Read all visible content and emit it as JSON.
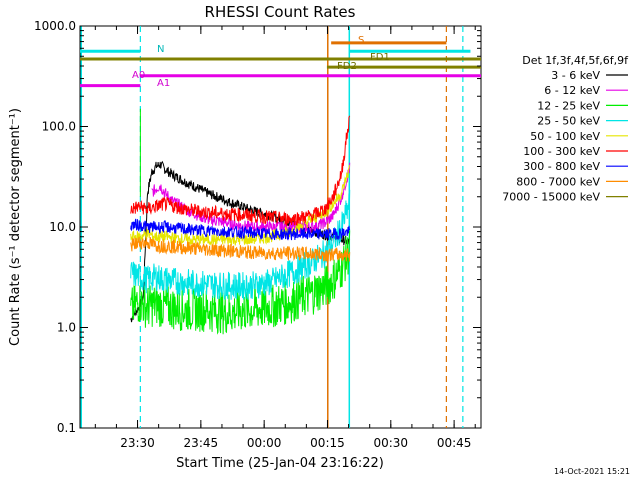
{
  "chart_data": {
    "type": "line",
    "title": "RHESSI Count Rates",
    "xlabel": "Start Time (25-Jan-04 23:16:22)",
    "ylabel": "Count Rate (s⁻¹ detector segment⁻¹)",
    "y_scale": "log",
    "ylim": [
      0.1,
      1000
    ],
    "x_unit": "minutes from 23:16:22",
    "xlim": [
      0,
      95
    ],
    "x_tick_labels": [
      "23:30",
      "23:45",
      "00:00",
      "00:15",
      "00:30",
      "00:45"
    ],
    "y_tick_labels": [
      "0.1",
      "1.0",
      "10.0",
      "100.0",
      "1000.0"
    ],
    "legend_title": "Det 1f,3f,4f,5f,6f,9f",
    "legend_position": "right",
    "series": [
      {
        "name": "3 - 6 keV",
        "color": "#000000",
        "x": [
          12,
          13,
          14,
          15,
          16,
          17,
          18,
          19,
          20,
          22,
          25,
          30,
          35,
          40,
          45,
          50,
          55,
          60,
          62,
          64
        ],
        "y": [
          1.2,
          1.4,
          1.6,
          2,
          22,
          35,
          40,
          42,
          38,
          33,
          28,
          22,
          18,
          15,
          13,
          11,
          9,
          8,
          7.5,
          7
        ]
      },
      {
        "name": "6 - 12 keV",
        "color": "#e600e6",
        "x": [
          17,
          18,
          19,
          20,
          22,
          25,
          30,
          35,
          40,
          45,
          50,
          55,
          58,
          60,
          62,
          64
        ],
        "y": [
          22,
          24,
          26,
          22,
          18,
          15,
          12,
          11,
          10,
          10,
          10,
          10,
          11,
          13,
          20,
          40
        ]
      },
      {
        "name": "12 - 25 keV",
        "color": "#00ee00",
        "x": [
          12,
          14,
          16,
          18,
          20,
          25,
          30,
          35,
          40,
          45,
          50,
          55,
          58,
          60,
          62,
          64
        ],
        "y": [
          1.5,
          1.8,
          1.6,
          1.7,
          1.6,
          1.5,
          1.5,
          1.4,
          1.5,
          1.6,
          1.8,
          2.2,
          2.5,
          3,
          4,
          6
        ]
      },
      {
        "name": "25 - 50 keV",
        "color": "#00e5e5",
        "x": [
          12,
          14,
          16,
          18,
          20,
          25,
          30,
          35,
          40,
          45,
          50,
          55,
          58,
          60,
          62,
          64
        ],
        "y": [
          3.5,
          3.2,
          3.0,
          3.2,
          3.0,
          2.8,
          2.7,
          2.6,
          2.6,
          2.8,
          3.5,
          4.5,
          5.5,
          7,
          10,
          18
        ]
      },
      {
        "name": "50 - 100 keV",
        "color": "#e5e500",
        "x": [
          12,
          14,
          16,
          18,
          20,
          25,
          30,
          35,
          40,
          45,
          50,
          55,
          58,
          60,
          62,
          64
        ],
        "y": [
          8,
          8,
          8.5,
          8,
          8,
          7.5,
          7.5,
          7.5,
          7.5,
          8,
          9,
          12,
          14,
          17,
          22,
          40
        ]
      },
      {
        "name": "100 - 300 keV",
        "color": "#ff0000",
        "x": [
          12,
          14,
          16,
          18,
          20,
          25,
          30,
          35,
          40,
          45,
          50,
          55,
          58,
          60,
          62,
          63,
          64
        ],
        "y": [
          15,
          16,
          15,
          16,
          17,
          15,
          14,
          13.5,
          13,
          12.5,
          12,
          13,
          15,
          20,
          35,
          70,
          130
        ]
      },
      {
        "name": "300 - 800 keV",
        "color": "#0000ff",
        "x": [
          12,
          14,
          16,
          18,
          20,
          25,
          30,
          35,
          40,
          45,
          50,
          55,
          60,
          64
        ],
        "y": [
          10.5,
          10.5,
          10,
          10,
          10,
          9.5,
          9.2,
          9.0,
          8.8,
          8.5,
          8.5,
          8.5,
          8.5,
          9
        ]
      },
      {
        "name": "800 - 7000 keV",
        "color": "#ff8c00",
        "x": [
          12,
          14,
          16,
          18,
          20,
          25,
          30,
          35,
          40,
          45,
          50,
          55,
          60,
          64
        ],
        "y": [
          6.5,
          7,
          7,
          6.5,
          6.5,
          6.2,
          6,
          5.8,
          5.6,
          5.5,
          5.5,
          5.4,
          5.3,
          5.3
        ]
      },
      {
        "name": "7000 - 15000 keV",
        "color": "#808000",
        "x": [],
        "y": []
      }
    ]
  },
  "annotations": {
    "n_label": "N",
    "a0_label": "A0",
    "a1_label": "A1",
    "s_label": "S",
    "fd1_label": "FD1",
    "fd2_label": "FD2"
  },
  "footer_date": "14-Oct-2021 15:21"
}
